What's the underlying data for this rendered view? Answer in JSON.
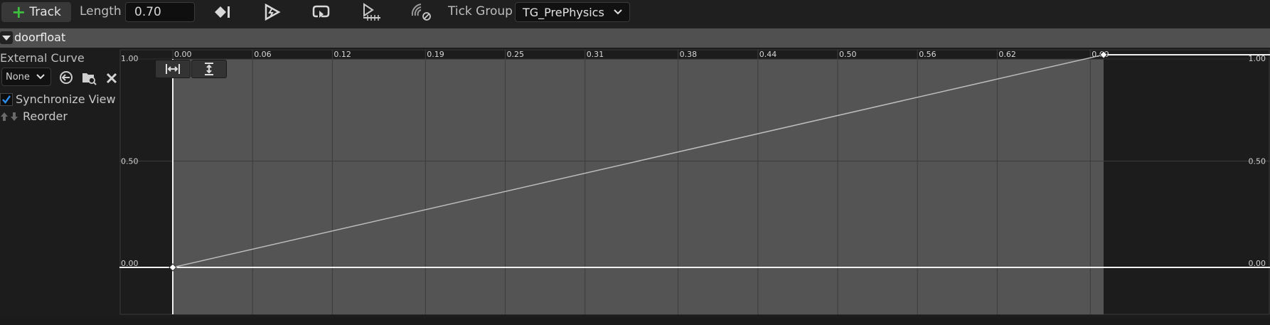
{
  "toolbar": {
    "add_track_label": "Track",
    "length_label": "Length",
    "length_value": "0.70",
    "tick_group_label": "Tick Group",
    "tick_group_value": "TG_PrePhysics",
    "icons": [
      "add-key-icon",
      "autoplay-icon",
      "loop-icon",
      "use-last-keyframe-icon",
      "replicated-icon"
    ]
  },
  "track": {
    "name": "doorfloat",
    "external_curve_label": "External Curve",
    "external_curve_value": "None",
    "synchronize_view_label": "Synchronize View",
    "synchronize_view_checked": true,
    "reorder_label": "Reorder"
  },
  "graph": {
    "x_ticks": [
      "0.00",
      "0.06",
      "0.12",
      "0.19",
      "0.25",
      "0.31",
      "0.38",
      "0.44",
      "0.50",
      "0.56",
      "0.62",
      "0.69"
    ],
    "y_labels_left": [
      "1.00",
      "0.50",
      "0.00"
    ],
    "y_labels_right": [
      "1.00",
      "0.50",
      "0.00"
    ],
    "keys": [
      {
        "time": 0.0,
        "value": 0.0
      },
      {
        "time": 0.7,
        "value": 1.0
      }
    ]
  },
  "colors": {
    "accent_plus": "#3fbf3f",
    "checkbox_check": "#2f8ff0",
    "curve_area": "#545454",
    "curve_line": "#bcbcbc"
  }
}
